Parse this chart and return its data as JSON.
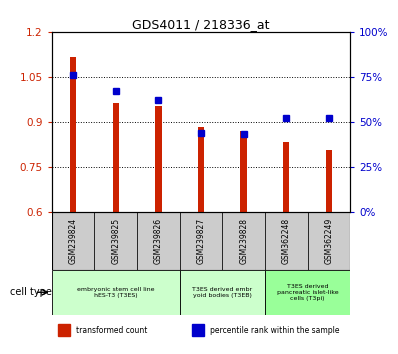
{
  "title": "GDS4011 / 218336_at",
  "samples": [
    "GSM239824",
    "GSM239825",
    "GSM239826",
    "GSM239827",
    "GSM239828",
    "GSM362248",
    "GSM362249"
  ],
  "transformed_count": [
    1.115,
    0.963,
    0.952,
    0.884,
    0.87,
    0.833,
    0.807
  ],
  "percentile_rank": [
    76,
    67,
    62,
    44,
    43,
    52,
    52
  ],
  "ylim_left": [
    0.6,
    1.2
  ],
  "ylim_right": [
    0,
    100
  ],
  "yticks_left": [
    0.6,
    0.75,
    0.9,
    1.05,
    1.2
  ],
  "ytick_labels_left": [
    "0.6",
    "0.75",
    "0.9",
    "1.05",
    "1.2"
  ],
  "yticks_right": [
    0,
    25,
    50,
    75,
    100
  ],
  "ytick_labels_right": [
    "0%",
    "25%",
    "50%",
    "75%",
    "100%"
  ],
  "bar_color": "#cc2200",
  "dot_color": "#0000cc",
  "grid_color": "#000000",
  "cell_groups": [
    {
      "label": "embryonic stem cell line\nhES-T3 (T3ES)",
      "start": 0,
      "end": 2,
      "color": "#ccffcc"
    },
    {
      "label": "T3ES derived embr\nyoid bodies (T3EB)",
      "start": 3,
      "end": 4,
      "color": "#ccffcc"
    },
    {
      "label": "T3ES derived\npancreatic islet-like\ncells (T3pi)",
      "start": 5,
      "end": 6,
      "color": "#99ff99"
    }
  ],
  "legend_items": [
    {
      "label": "transformed count",
      "color": "#cc2200",
      "marker": "s"
    },
    {
      "label": "percentile rank within the sample",
      "color": "#0000cc",
      "marker": "s"
    }
  ],
  "cell_type_label": "cell type",
  "bg_color": "#ffffff",
  "tick_label_color_left": "#cc2200",
  "tick_label_color_right": "#0000cc",
  "bar_width": 0.15,
  "dot_size": 4
}
